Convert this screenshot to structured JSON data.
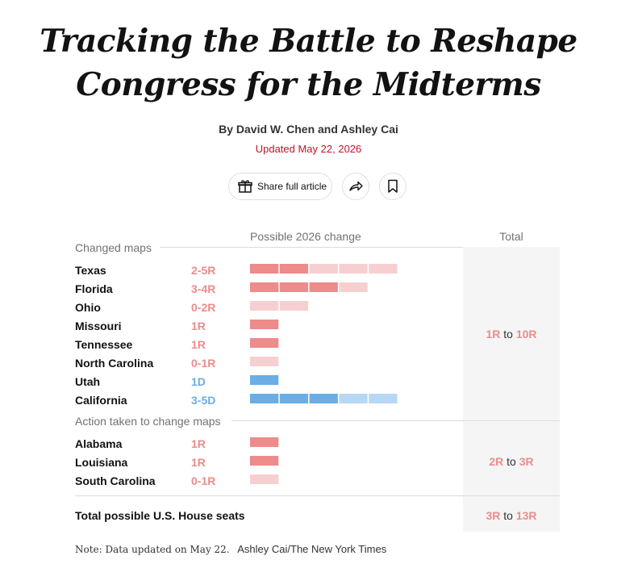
{
  "article": {
    "headline_line1": "Tracking the Battle to Reshape",
    "headline_line2": "Congress for the Midterms",
    "byline": "By David W. Chen and Ashley Cai",
    "updated": "Updated May 22, 2026",
    "share_label": "Share full article"
  },
  "icons": {
    "share_gift": "gift-icon",
    "forward": "share-arrow-icon",
    "save": "bookmark-icon"
  },
  "colors": {
    "republican": "#ee8b8b",
    "republican_possible": "#f6d0d0",
    "democrat": "#6aaee5",
    "democrat_possible": "#b6d8f4",
    "accent_red": "#c8102e"
  },
  "chart_data": {
    "type": "bar",
    "column_headers": {
      "change": "Possible 2026 change",
      "total": "Total"
    },
    "groups": [
      {
        "label": "Changed maps",
        "total_min": "1R",
        "total_to": "to",
        "total_max": "10R",
        "rows": [
          {
            "state": "Texas",
            "change": "2-5R",
            "party": "R",
            "min": 2,
            "max": 5
          },
          {
            "state": "Florida",
            "change": "3-4R",
            "party": "R",
            "min": 3,
            "max": 4
          },
          {
            "state": "Ohio",
            "change": "0-2R",
            "party": "R",
            "min": 0,
            "max": 2
          },
          {
            "state": "Missouri",
            "change": "1R",
            "party": "R",
            "min": 1,
            "max": 1
          },
          {
            "state": "Tennessee",
            "change": "1R",
            "party": "R",
            "min": 1,
            "max": 1
          },
          {
            "state": "North Carolina",
            "change": "0-1R",
            "party": "R",
            "min": 0,
            "max": 1
          },
          {
            "state": "Utah",
            "change": "1D",
            "party": "D",
            "min": 1,
            "max": 1
          },
          {
            "state": "California",
            "change": "3-5D",
            "party": "D",
            "min": 3,
            "max": 5
          }
        ]
      },
      {
        "label": "Action taken to change maps",
        "total_min": "2R",
        "total_to": "to",
        "total_max": "3R",
        "rows": [
          {
            "state": "Alabama",
            "change": "1R",
            "party": "R",
            "min": 1,
            "max": 1
          },
          {
            "state": "Louisiana",
            "change": "1R",
            "party": "R",
            "min": 1,
            "max": 1
          },
          {
            "state": "South Carolina",
            "change": "0-1R",
            "party": "R",
            "min": 0,
            "max": 1
          }
        ]
      }
    ],
    "total_row": {
      "label": "Total possible U.S. House seats",
      "min": "3R",
      "to": "to",
      "max": "13R"
    },
    "note": "Note: Data updated on May 22.",
    "credit": "Ashley Cai/The New York Times"
  }
}
